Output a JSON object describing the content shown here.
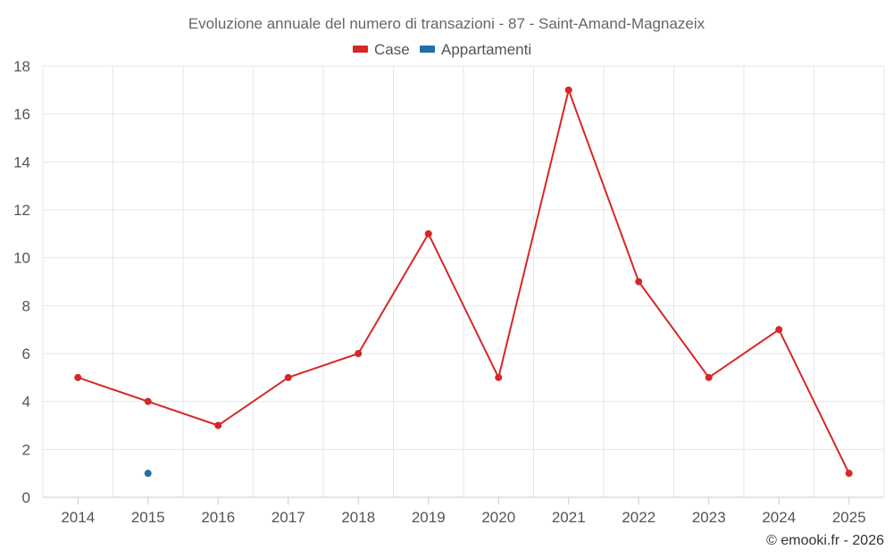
{
  "chart_data": {
    "type": "line",
    "title": "Evoluzione annuale del numero di transazioni - 87 - Saint-Amand-Magnazeix",
    "x": [
      "2014",
      "2015",
      "2016",
      "2017",
      "2018",
      "2019",
      "2020",
      "2021",
      "2022",
      "2023",
      "2024",
      "2025"
    ],
    "series": [
      {
        "name": "Case",
        "color": "#d62728",
        "values": [
          5,
          4,
          3,
          5,
          6,
          11,
          5,
          17,
          9,
          5,
          7,
          1
        ]
      },
      {
        "name": "Appartamenti",
        "color": "#1f6fa8",
        "values": [
          null,
          1,
          null,
          null,
          null,
          null,
          null,
          null,
          null,
          null,
          null,
          null
        ]
      }
    ],
    "ylim": [
      0,
      18
    ],
    "yticks": [
      0,
      2,
      4,
      6,
      8,
      10,
      12,
      14,
      16,
      18
    ],
    "xlabel": "",
    "ylabel": "",
    "legend": "top-center",
    "grid": true
  },
  "credit": "© emooki.fr - 2026"
}
